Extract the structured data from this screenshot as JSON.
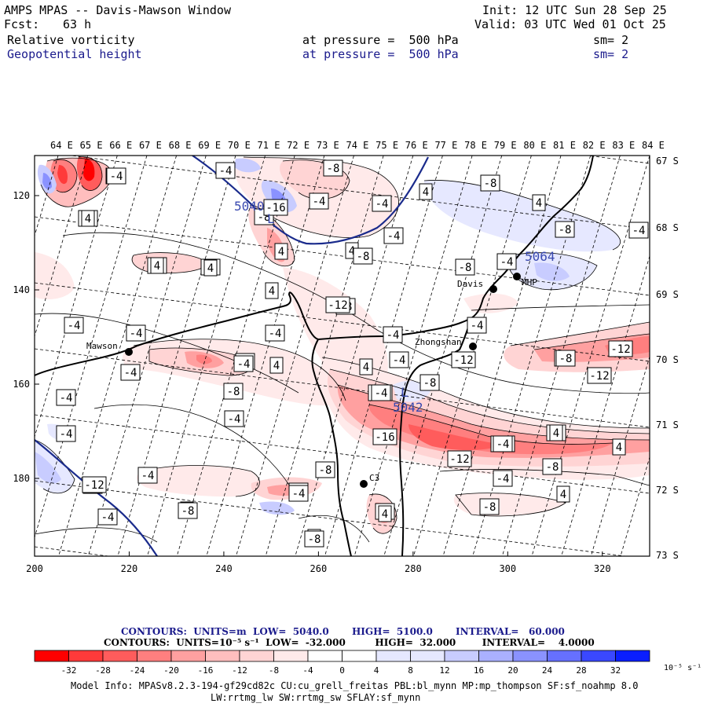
{
  "header": {
    "title": "AMPS MPAS -- Davis-Mawson Window",
    "fcst_label": "Fcst:",
    "fcst_value": "63 h",
    "init": "Init: 12 UTC Sun 28 Sep 25",
    "valid": "Valid: 03 UTC Wed 01 Oct 25",
    "field1": {
      "name": "Relative vorticity",
      "level": "at pressure =  500 hPa",
      "sm": "sm= 2"
    },
    "field2": {
      "name": "Geopotential height",
      "level": "at pressure =  500 hPa",
      "sm": "sm= 2"
    }
  },
  "map": {
    "lon_labels": [
      "64 E",
      "65 E",
      "66 E",
      "67 E",
      "68 E",
      "69 E",
      "70 E",
      "71 E",
      "72 E",
      "73 E",
      "74 E",
      "75 E",
      "76 E",
      "77 E",
      "78 E",
      "79 E",
      "80 E",
      "81 E",
      "82 E",
      "83 E",
      "84 E"
    ],
    "lat_labels": [
      "67 S",
      "68 S",
      "69 S",
      "70 S",
      "71 S",
      "72 S",
      "73 S"
    ],
    "x_ticks": [
      "200",
      "220",
      "240",
      "260",
      "280",
      "300",
      "320"
    ],
    "y_ticks": [
      "120",
      "140",
      "160",
      "180"
    ],
    "stations": [
      {
        "name": "Mawson"
      },
      {
        "name": "Davis"
      },
      {
        "name": "MHP"
      },
      {
        "name": "Zhongshan"
      },
      {
        "name": "C3"
      }
    ],
    "height_labels": [
      "5040",
      "5064",
      "5042"
    ],
    "vort_labels": [
      "-4",
      "-4",
      "4",
      "-4",
      "-4",
      "-8",
      "-8",
      "4",
      "-8",
      "4",
      "-8",
      "-4",
      "4",
      "4",
      "-8",
      "-4",
      "4",
      "-4",
      "-4",
      "4",
      "-4",
      "-4",
      "-4",
      "-4",
      "-8",
      "-4",
      "-12",
      "-4",
      "4",
      "-8",
      "-12",
      "-8",
      "-4",
      "-12",
      "4",
      "-4",
      "4",
      "-4",
      "-8",
      "-4",
      "-16",
      "-12",
      "-4",
      "-12",
      "4",
      "-8",
      "-4",
      "4",
      "-8",
      "-4",
      "-4",
      "-8",
      "-4",
      "-4",
      "4",
      "4",
      "-8",
      "-4",
      "-4",
      "4",
      "-12",
      "-8",
      "-16",
      "-12",
      "-8",
      "-12",
      "-4",
      "-8",
      "-4",
      "-4",
      "-12",
      "-8",
      "-4",
      "4",
      "-8",
      "4",
      "4",
      "-4",
      "4",
      "-4",
      "-8",
      "-4",
      "-8",
      "-4",
      "-4"
    ]
  },
  "legend": {
    "contours1": "CONTOURS:  UNITS=m  LOW=  5040.0       HIGH=  5100.0       INTERVAL=   60.000",
    "contours2": "CONTOURS:  UNITS=10⁻⁵ s⁻¹  LOW=  -32.000         HIGH=  32.000        INTERVAL=    4.0000",
    "colorbar_labels": [
      "-32",
      "-28",
      "-24",
      "-20",
      "-16",
      "-12",
      "-8",
      "-4",
      "0",
      "4",
      "8",
      "12",
      "16",
      "20",
      "24",
      "28",
      "32"
    ],
    "colorbar_colors": [
      "#ff0000",
      "#ff3a3a",
      "#ff5c5c",
      "#ff7f7f",
      "#ffa0a0",
      "#ffbebe",
      "#ffd4d4",
      "#ffeaea",
      "#ffffff",
      "#ffffff",
      "#e6e8ff",
      "#c8ccff",
      "#aab0ff",
      "#8a92ff",
      "#6670ff",
      "#3a48ff",
      "#0a1eff"
    ],
    "unit": "10⁻⁵ s⁻¹"
  },
  "footer": {
    "line1": "Model Info: MPASv8.2.3-194-gf29cd82c CU:cu_grell_freitas PBL:bl_mynn MP:mp_thompson SF:sf_noahmp 8.0",
    "line2": "LW:rrtmg_lw SW:rrtmg_sw SFLAY:sf_mynn"
  }
}
